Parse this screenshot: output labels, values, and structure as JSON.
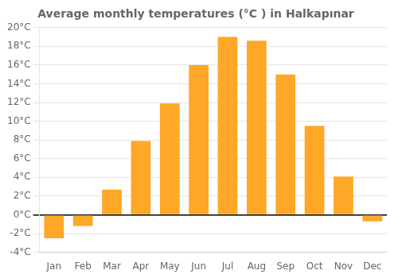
{
  "chart_data": {
    "type": "bar",
    "title": "Average monthly temperatures (°C ) in Halkapınar",
    "categories": [
      "Jan",
      "Feb",
      "Mar",
      "Apr",
      "May",
      "Jun",
      "Jul",
      "Aug",
      "Sep",
      "Oct",
      "Nov",
      "Dec"
    ],
    "values": [
      -2.5,
      -1.2,
      2.7,
      7.9,
      11.9,
      16.0,
      19.0,
      18.6,
      15.0,
      9.5,
      4.1,
      -0.7
    ],
    "color": "#FFA726",
    "ylim": [
      -4,
      20
    ],
    "yticks": [
      {
        "value": -4,
        "label": "-4°C"
      },
      {
        "value": -2,
        "label": "-2°C"
      },
      {
        "value": 0,
        "label": "0°C"
      },
      {
        "value": 2,
        "label": "2°C"
      },
      {
        "value": 4,
        "label": "4°C"
      },
      {
        "value": 6,
        "label": "6°C"
      },
      {
        "value": 8,
        "label": "8°C"
      },
      {
        "value": 10,
        "label": "10°C"
      },
      {
        "value": 12,
        "label": "12°C"
      },
      {
        "value": 14,
        "label": "14°C"
      },
      {
        "value": 16,
        "label": "16°C"
      },
      {
        "value": 18,
        "label": "18°C"
      },
      {
        "value": 20,
        "label": "20°C"
      }
    ],
    "grid": true
  }
}
